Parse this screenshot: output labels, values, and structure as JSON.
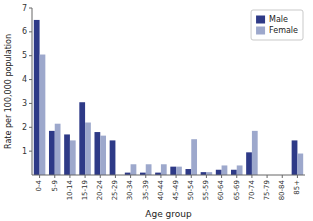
{
  "chart_data": {
    "type": "bar",
    "x_label": "Age group",
    "y_label": "Rate per 100,000 population",
    "categories": [
      "0-4",
      "5-9",
      "10-14",
      "15-19",
      "20-24",
      "25-29",
      "30-34",
      "35-39",
      "40-44",
      "45-49",
      "50-54",
      "55-59",
      "60-64",
      "65-69",
      "70-74",
      "75-79",
      "80-84",
      "85+"
    ],
    "series": [
      {
        "name": "Male",
        "color": "#2e3a87",
        "values": [
          6.5,
          1.85,
          1.7,
          3.05,
          1.8,
          1.45,
          0.1,
          0.1,
          0.1,
          0.35,
          0.25,
          0.12,
          0.22,
          0.22,
          0.95,
          0.0,
          0.0,
          1.45
        ]
      },
      {
        "name": "Female",
        "color": "#9da8cc",
        "values": [
          5.05,
          2.15,
          1.45,
          2.2,
          1.65,
          0.0,
          0.45,
          0.45,
          0.45,
          0.35,
          1.5,
          0.12,
          0.4,
          0.4,
          1.85,
          0.0,
          0.0,
          0.9
        ]
      }
    ],
    "ylim": [
      0,
      7
    ],
    "yticks": [
      1,
      2,
      3,
      4,
      5,
      6,
      7
    ],
    "grid": false,
    "legend": "upper right"
  }
}
